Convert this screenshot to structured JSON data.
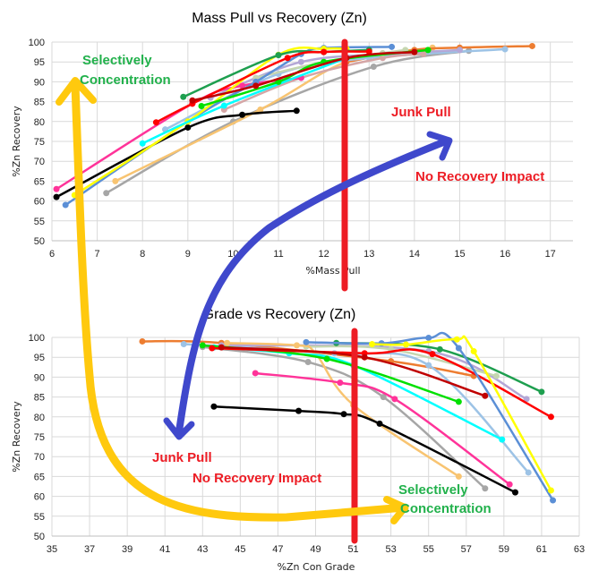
{
  "chart_data": [
    {
      "type": "line",
      "title": "Mass Pull vs Recovery (Zn)",
      "xlabel": "%Mass Pull",
      "ylabel": "%Zn Recovery",
      "xlim": [
        6,
        17.5
      ],
      "ylim": [
        50,
        100
      ],
      "xticks": [
        6,
        7,
        8,
        9,
        10,
        11,
        12,
        13,
        14,
        15,
        16,
        17
      ],
      "yticks": [
        50,
        55,
        60,
        65,
        70,
        75,
        80,
        85,
        90,
        95,
        100
      ],
      "grid": true,
      "series": [
        {
          "color": "#a6a6a6",
          "x": [
            7.2,
            10,
            13.1,
            15.2
          ],
          "y": [
            62,
            80,
            93.8,
            97.8
          ]
        },
        {
          "color": "#f8c471",
          "x": [
            7.4,
            10.6,
            12.5,
            14.4
          ],
          "y": [
            65,
            83,
            95,
            98.6
          ]
        },
        {
          "color": "#ed7d31",
          "x": [
            12.5,
            14,
            15,
            16.6
          ],
          "y": [
            95,
            98,
            98.6,
            99
          ]
        },
        {
          "color": "#9dc3e6",
          "x": [
            8.5,
            11,
            13,
            16
          ],
          "y": [
            78,
            92,
            96,
            98.2
          ]
        },
        {
          "color": "#b4a7d6",
          "x": [
            9.5,
            11.5,
            13.5,
            15
          ],
          "y": [
            86,
            95,
            97,
            98
          ]
        },
        {
          "color": "#d5a6a6",
          "x": [
            9.8,
            11.5,
            13.3,
            14.2
          ],
          "y": [
            83,
            91,
            96,
            97
          ]
        },
        {
          "color": "#c5d6b0",
          "x": [
            10.5,
            12,
            13.3,
            13.8
          ],
          "y": [
            91,
            95,
            97.2,
            98
          ]
        },
        {
          "color": "#000000",
          "x": [
            6.1,
            9,
            10.2,
            11.4
          ],
          "y": [
            61,
            78.5,
            81.7,
            82.7
          ]
        },
        {
          "color": "#ff3399",
          "x": [
            6.1,
            9.1,
            10.2,
            11.5
          ],
          "y": [
            63,
            84.5,
            89,
            91
          ]
        },
        {
          "color": "#5b8fd6",
          "x": [
            6.3,
            9,
            10.5,
            11.5,
            12,
            13.5
          ],
          "y": [
            59,
            80,
            90,
            97,
            98.5,
            98.8
          ]
        },
        {
          "color": "#ffff00",
          "x": [
            6.5,
            9,
            11,
            12,
            12.5
          ],
          "y": [
            61.5,
            80,
            96.8,
            98.3,
            98.3
          ]
        },
        {
          "color": "#00ffff",
          "x": [
            8,
            9.8,
            12.5
          ],
          "y": [
            74.5,
            84,
            96
          ]
        },
        {
          "color": "#00e000",
          "x": [
            9.3,
            11,
            12,
            14.3
          ],
          "y": [
            83.9,
            90,
            95,
            98
          ]
        },
        {
          "color": "#1e9f4f",
          "x": [
            8.9,
            11,
            12,
            13
          ],
          "y": [
            86.2,
            96.7,
            97.5,
            98
          ]
        },
        {
          "color": "#ff0000",
          "x": [
            8.3,
            9.1,
            11.2,
            12,
            13
          ],
          "y": [
            79.8,
            84.5,
            96,
            97.5,
            97.6
          ]
        },
        {
          "color": "#c00000",
          "x": [
            9.1,
            10.5,
            12.5,
            14
          ],
          "y": [
            85.3,
            89,
            96,
            97.5
          ]
        }
      ]
    },
    {
      "type": "line",
      "title": "Grade vs Recovery (Zn)",
      "xlabel": "%Zn Con Grade",
      "ylabel": "%Zn Recovery",
      "xlim": [
        35,
        63
      ],
      "ylim": [
        50,
        100
      ],
      "xticks": [
        35,
        37,
        39,
        41,
        43,
        45,
        47,
        49,
        51,
        53,
        55,
        57,
        59,
        61,
        63
      ],
      "yticks": [
        50,
        55,
        60,
        65,
        70,
        75,
        80,
        85,
        90,
        95,
        100
      ],
      "grid": true,
      "series": [
        {
          "color": "#ed7d31",
          "x": [
            39.8,
            44,
            53,
            57.4
          ],
          "y": [
            99,
            98.6,
            94,
            90.3
          ]
        },
        {
          "color": "#9dc3e6",
          "x": [
            42,
            50,
            55,
            60.3
          ],
          "y": [
            98.3,
            96,
            93,
            66
          ]
        },
        {
          "color": "#b4a7d6",
          "x": [
            44,
            55,
            60.2
          ],
          "y": [
            98,
            96.5,
            84.5
          ]
        },
        {
          "color": "#c5d6b0",
          "x": [
            48.5,
            53,
            58.6
          ],
          "y": [
            97.7,
            97,
            90.3
          ]
        },
        {
          "color": "#a6a6a6",
          "x": [
            43,
            48.6,
            52.6,
            58
          ],
          "y": [
            97.6,
            93.8,
            85,
            62
          ]
        },
        {
          "color": "#f8c471",
          "x": [
            44.3,
            48,
            49,
            51,
            56.6
          ],
          "y": [
            98.6,
            98,
            96,
            83,
            65
          ]
        },
        {
          "color": "#000000",
          "x": [
            43.6,
            48.1,
            50.5,
            52.4,
            59.6
          ],
          "y": [
            82.6,
            81.5,
            80.7,
            78.3,
            61
          ]
        },
        {
          "color": "#ff3399",
          "x": [
            45.8,
            50.3,
            53.2,
            59.3
          ],
          "y": [
            91,
            88.6,
            84.5,
            63
          ]
        },
        {
          "color": "#00ffff",
          "x": [
            43.6,
            47.6,
            51,
            58.9
          ],
          "y": [
            97.5,
            96,
            93,
            74.3
          ]
        },
        {
          "color": "#00e000",
          "x": [
            43,
            49.6,
            56.6
          ],
          "y": [
            98,
            94.6,
            83.8
          ]
        },
        {
          "color": "#1e9f4f",
          "x": [
            50.1,
            55.6,
            61
          ],
          "y": [
            98.6,
            97,
            86.3
          ]
        },
        {
          "color": "#ff0000",
          "x": [
            43.5,
            51.6,
            55.2,
            61.5
          ],
          "y": [
            97.3,
            96,
            95.8,
            80
          ]
        },
        {
          "color": "#c00000",
          "x": [
            44,
            51.6,
            58
          ],
          "y": [
            97.5,
            95,
            85.3
          ]
        },
        {
          "color": "#5b8fd6",
          "x": [
            48.5,
            52.5,
            55,
            56.6,
            61.6
          ],
          "y": [
            98.8,
            98.5,
            99.9,
            97.3,
            59
          ]
        },
        {
          "color": "#ffff00",
          "x": [
            52,
            53.8,
            56.5,
            57.4,
            61.5
          ],
          "y": [
            98.3,
            98.2,
            99.5,
            96.5,
            61.5
          ]
        }
      ]
    }
  ],
  "annotations": {
    "top_selective_1": "Selectively",
    "top_selective_2": "Concentration",
    "top_junk": "Junk Pull",
    "top_no_impact": "No Recovery Impact",
    "bottom_junk": "Junk Pull",
    "bottom_no_impact": "No Recovery Impact",
    "bottom_selective_1": "Selectively",
    "bottom_selective_2": "Concentration",
    "green": "#22b14c",
    "red": "#ed1c24",
    "yellow": "#ffc90e",
    "blue": "#3f48cc"
  }
}
